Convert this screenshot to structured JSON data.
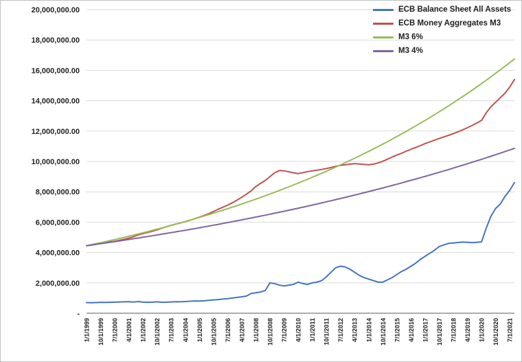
{
  "window": {
    "background": "#ffffff",
    "border_color": "#c0c0c0"
  },
  "chart_data": {
    "type": "line",
    "title": "",
    "grid": true,
    "legend_position": "top-right",
    "ylim": [
      0,
      20000000
    ],
    "y_tick_step": 2000000,
    "y_tick_labels": [
      "20,000,000.00",
      "18,000,000.00",
      "16,000,000.00",
      "14,000,000.00",
      "12,000,000.00",
      "10,000,000.00",
      "8,000,000.00",
      "6,000,000.00",
      "4,000,000.00",
      "2,000,000.00",
      "-"
    ],
    "x_tick_labels": [
      "1/1/1999",
      "10/1/1999",
      "7/1/2000",
      "4/1/2001",
      "1/1/2002",
      "10/1/2002",
      "7/1/2003",
      "4/1/2004",
      "1/1/2005",
      "10/1/2005",
      "7/1/2006",
      "4/1/2007",
      "1/1/2008",
      "10/1/2008",
      "7/1/2009",
      "4/1/2010",
      "1/1/2011",
      "10/1/2011",
      "7/1/2012",
      "4/1/2013",
      "1/1/2014",
      "10/1/2014",
      "7/1/2015",
      "4/1/2016",
      "1/1/2017",
      "10/1/2017",
      "7/1/2018",
      "4/1/2019",
      "1/1/2020",
      "10/1/2020",
      "7/1/2021"
    ],
    "points_per_x_label": 3,
    "x_unit": "quarterly, 1/1/1999 to 10/1/2021",
    "series": [
      {
        "name": "ECB Balance Sheet All Assets",
        "color": "#4472C4",
        "values": [
          700000,
          690000,
          700000,
          720000,
          710000,
          720000,
          730000,
          740000,
          750000,
          760000,
          740000,
          770000,
          730000,
          720000,
          730000,
          750000,
          720000,
          730000,
          740000,
          760000,
          750000,
          770000,
          790000,
          810000,
          800000,
          820000,
          850000,
          880000,
          900000,
          930000,
          960000,
          1000000,
          1040000,
          1080000,
          1130000,
          1300000,
          1350000,
          1400000,
          1500000,
          2000000,
          1950000,
          1850000,
          1800000,
          1850000,
          1900000,
          2050000,
          1950000,
          1900000,
          2000000,
          2050000,
          2150000,
          2400000,
          2700000,
          3000000,
          3100000,
          3050000,
          2900000,
          2700000,
          2500000,
          2350000,
          2250000,
          2150000,
          2050000,
          2050000,
          2200000,
          2350000,
          2550000,
          2750000,
          2900000,
          3100000,
          3300000,
          3550000,
          3750000,
          3950000,
          4150000,
          4400000,
          4500000,
          4600000,
          4630000,
          4660000,
          4690000,
          4670000,
          4650000,
          4670000,
          4700000,
          5600000,
          6400000,
          6900000,
          7200000,
          7700000,
          8100000,
          8600000
        ]
      },
      {
        "name": "ECB Money Aggregates M3",
        "color": "#C0504D",
        "values": [
          4450000,
          4490000,
          4540000,
          4600000,
          4650000,
          4700000,
          4740000,
          4800000,
          4870000,
          4950000,
          5040000,
          5160000,
          5250000,
          5320000,
          5400000,
          5490000,
          5600000,
          5700000,
          5790000,
          5880000,
          5950000,
          6030000,
          6120000,
          6230000,
          6330000,
          6440000,
          6560000,
          6700000,
          6850000,
          6980000,
          7120000,
          7270000,
          7450000,
          7640000,
          7840000,
          8060000,
          8350000,
          8550000,
          8750000,
          9000000,
          9250000,
          9400000,
          9380000,
          9320000,
          9250000,
          9200000,
          9260000,
          9330000,
          9380000,
          9420000,
          9470000,
          9530000,
          9600000,
          9680000,
          9740000,
          9780000,
          9820000,
          9850000,
          9830000,
          9800000,
          9780000,
          9820000,
          9900000,
          10010000,
          10150000,
          10290000,
          10420000,
          10540000,
          10680000,
          10800000,
          10920000,
          11040000,
          11170000,
          11290000,
          11400000,
          11510000,
          11620000,
          11720000,
          11830000,
          11950000,
          12080000,
          12220000,
          12370000,
          12530000,
          12700000,
          13200000,
          13600000,
          13900000,
          14200000,
          14500000,
          14900000,
          15400000
        ]
      },
      {
        "name": "M3 6%",
        "color": "#9BBB59",
        "values": [
          4450000,
          4515300,
          4581600,
          4648800,
          4717000,
          4786200,
          4856500,
          4927700,
          5000000,
          5073400,
          5147800,
          5223400,
          5300000,
          5377800,
          5456700,
          5536800,
          5618000,
          5700400,
          5784100,
          5869000,
          5955100,
          6042500,
          6131200,
          6221100,
          6312400,
          6405000,
          6499000,
          6594400,
          6691200,
          6789300,
          6889000,
          6990100,
          7092200,
          7196300,
          7301900,
          7409100,
          7517800,
          7628100,
          7740000,
          7853600,
          7968800,
          8085800,
          8204400,
          8324800,
          8447000,
          8570900,
          8696700,
          8824300,
          8953800,
          9085200,
          9218500,
          9353700,
          9491800,
          9631100,
          9772400,
          9915800,
          10061300,
          10208900,
          10358700,
          10510700,
          10665000,
          10821500,
          10980300,
          11141400,
          11304900,
          11470800,
          11639100,
          11809900,
          11983200,
          12159000,
          12337400,
          12518500,
          12702200,
          12888600,
          13077700,
          13269600,
          13464300,
          13661800,
          13862300,
          14065700,
          14272200,
          14481600,
          14694100,
          14909700,
          15128500,
          15350500,
          15575700,
          15804300,
          16036200,
          16271500,
          16510300,
          16752500
        ]
      },
      {
        "name": "M3 4%",
        "color": "#8064A2",
        "values": [
          4450000,
          4493800,
          4538100,
          4582800,
          4628000,
          4673600,
          4719700,
          4766200,
          4813100,
          4860500,
          4908400,
          4956800,
          5005600,
          5054900,
          5104800,
          5155100,
          5205900,
          5257200,
          5309000,
          5361300,
          5414100,
          5467400,
          5521300,
          5575700,
          5630700,
          5686200,
          5742200,
          5798800,
          5855900,
          5913600,
          5971900,
          6030700,
          6090100,
          6150100,
          6210700,
          6271900,
          6333700,
          6396100,
          6459100,
          6522800,
          6587100,
          6652000,
          6717500,
          6783700,
          6850600,
          6918100,
          6986200,
          7055100,
          7124600,
          7194800,
          7265700,
          7337300,
          7409600,
          7482600,
          7556300,
          7630800,
          7706000,
          7781900,
          7858600,
          7936000,
          8014200,
          8093200,
          8172900,
          8253400,
          8334800,
          8416900,
          8499800,
          8583600,
          8668200,
          8753600,
          8839800,
          8926900,
          9014900,
          9103700,
          9193400,
          9284000,
          9375500,
          9467800,
          9561100,
          9655300,
          9750500,
          9846600,
          9943600,
          10041500,
          10140500,
          10240400,
          10341300,
          10443200,
          10546100,
          10650000,
          10754900,
          10860900
        ]
      }
    ]
  }
}
